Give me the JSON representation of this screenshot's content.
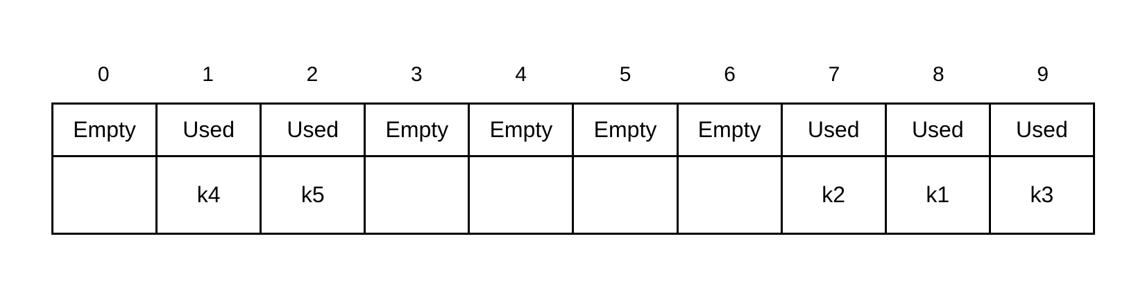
{
  "indices": [
    "0",
    "1",
    "2",
    "3",
    "4",
    "5",
    "6",
    "7",
    "8",
    "9"
  ],
  "status": [
    "Empty",
    "Used",
    "Used",
    "Empty",
    "Empty",
    "Empty",
    "Empty",
    "Used",
    "Used",
    "Used"
  ],
  "keys": [
    "",
    "k4",
    "k5",
    "",
    "",
    "",
    "",
    "k2",
    "k1",
    "k3"
  ]
}
